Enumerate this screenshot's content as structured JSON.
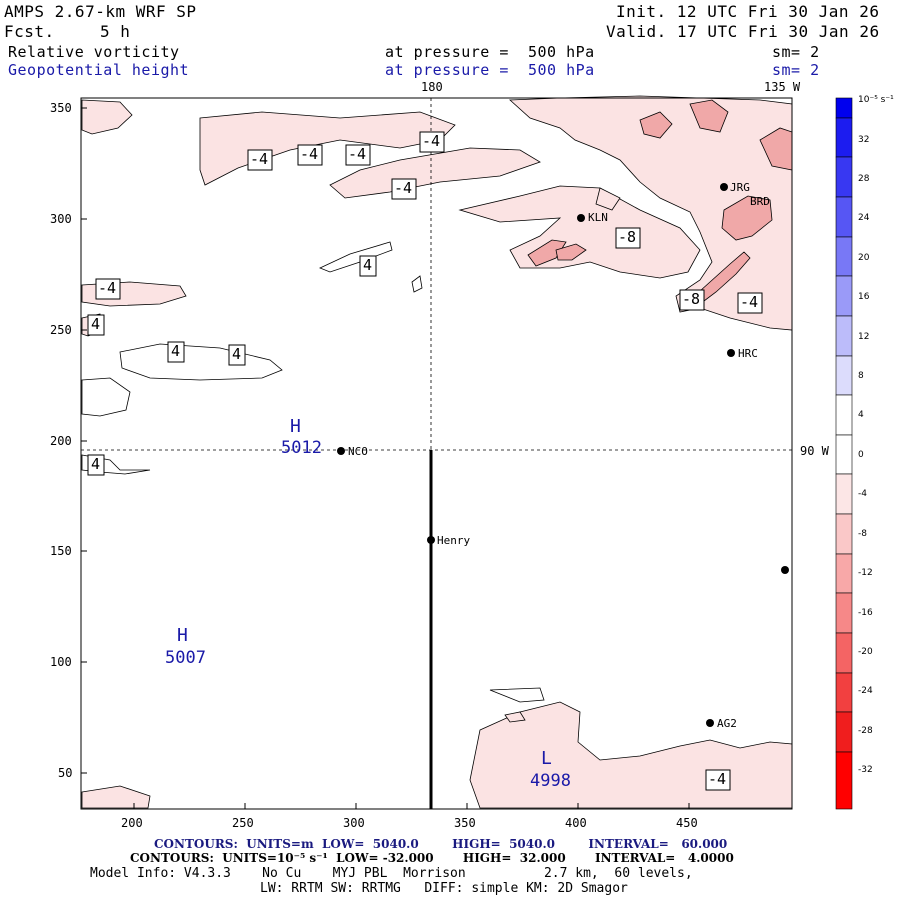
{
  "header": {
    "model": "AMPS 2.67-km WRF SP",
    "forecast_label": "Fcst.",
    "forecast_value": "5 h",
    "init": "Init. 12 UTC Fri 30 Jan 26",
    "valid": "Valid. 17 UTC Fri 30 Jan 26",
    "field1_name": "Relative vorticity",
    "field1_level": "at pressure =  500 hPa",
    "field1_sm": "sm= 2",
    "field2_name": "Geopotential height",
    "field2_level": "at pressure =  500 hPa",
    "field2_sm": "sm= 2"
  },
  "map": {
    "x_axis_ticks": [
      "200",
      "250",
      "300",
      "350",
      "400",
      "450"
    ],
    "y_axis_ticks": [
      "350",
      "300",
      "250",
      "200",
      "150",
      "100",
      "50"
    ],
    "top_labels": [
      "180",
      "135 W"
    ],
    "right_label": "90 W",
    "stations": [
      "NCO",
      "Henry",
      "KLN",
      "HRC",
      "AG2",
      "JRG",
      "BRD"
    ],
    "pressure_centers": [
      {
        "letter": "H",
        "value": "5012"
      },
      {
        "letter": "H",
        "value": "5007"
      },
      {
        "letter": "L",
        "value": "4998"
      }
    ],
    "contour_labels": [
      "-4",
      "-4",
      "-4",
      "-4",
      "-4",
      "4",
      "-4",
      "4",
      "4",
      "4",
      "4",
      "-8",
      "-8",
      "-4",
      "-4"
    ]
  },
  "colorbar": {
    "unit": "10⁻⁵ s⁻¹",
    "ticks": [
      "32",
      "28",
      "24",
      "20",
      "16",
      "12",
      "8",
      "4",
      "0",
      "-4",
      "-8",
      "-12",
      "-16",
      "-20",
      "-24",
      "-28",
      "-32"
    ],
    "positive_color": "#0000ee",
    "negative_color": "#ff0000"
  },
  "footer": {
    "line1": "CONTOURS:  UNITS=m  LOW=  5040.0        HIGH=  5040.0        INTERVAL=   60.000",
    "line2": "CONTOURS:  UNITS=10⁻⁵ s⁻¹  LOW= -32.000       HIGH=  32.000       INTERVAL=   4.0000",
    "line3": "Model Info: V4.3.3    No Cu    MYJ PBL  Morrison          2.7 km,  60 levels,",
    "line4": "LW: RRTM SW: RRTMG   DIFF: simple KM: 2D Smagor"
  }
}
